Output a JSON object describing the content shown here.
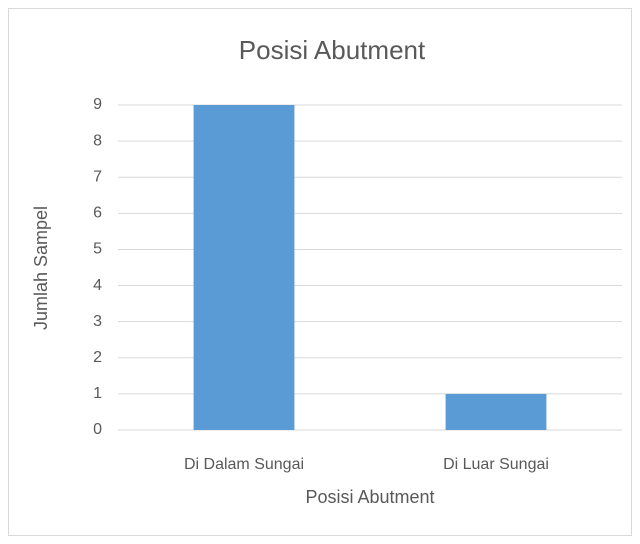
{
  "chart_data": {
    "type": "bar",
    "title": "Posisi Abutment",
    "x_label": "Posisi Abutment",
    "y_label": "Jumlah Sampel",
    "categories": [
      "Di Dalam Sungai",
      "Di Luar Sungai"
    ],
    "values": [
      9,
      1
    ],
    "color": "#5b9bd5",
    "ylim": [
      0,
      9
    ],
    "yticks": [
      0,
      1,
      2,
      3,
      4,
      5,
      6,
      7,
      8,
      9
    ],
    "grid": true
  }
}
